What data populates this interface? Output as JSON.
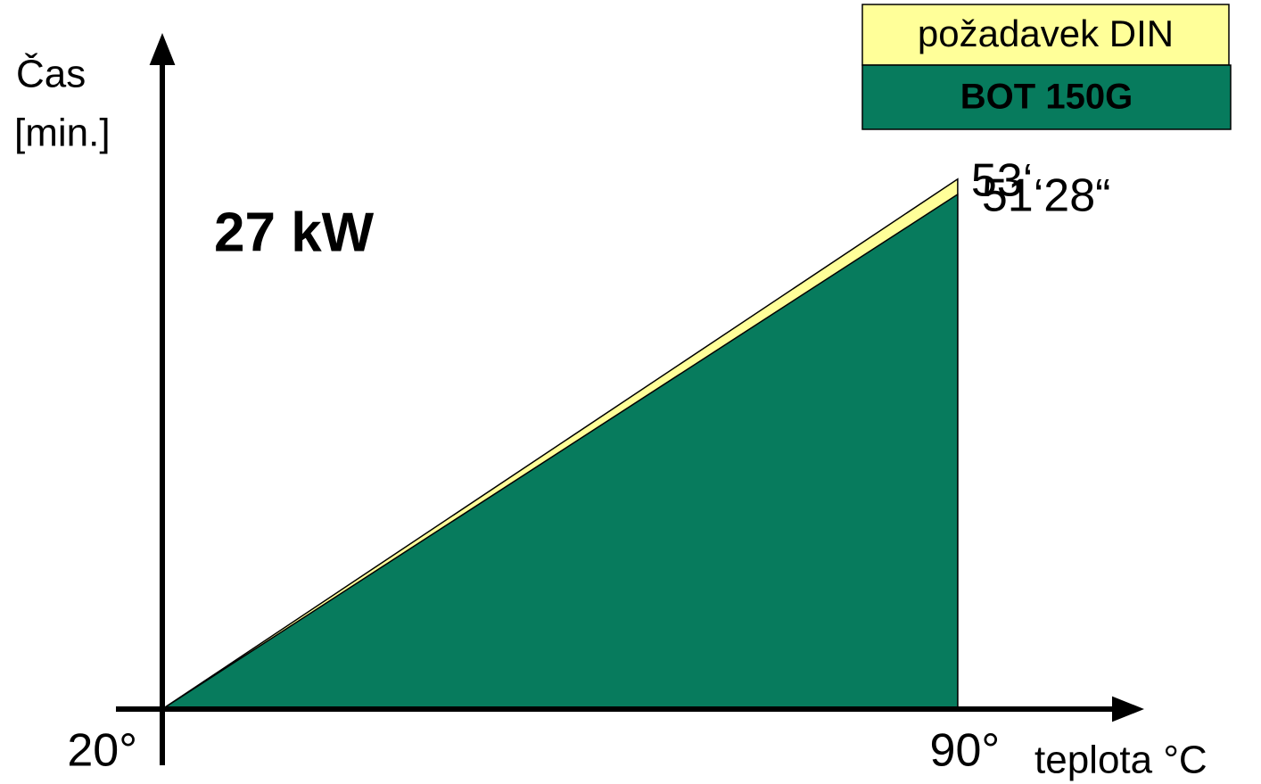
{
  "chart_data": {
    "type": "area",
    "ylabel": [
      "Čas",
      "[min.]"
    ],
    "xlabel": "teplota °C",
    "annotation": "27 kW",
    "x": [
      20,
      90
    ],
    "xlim": [
      20,
      105
    ],
    "xticks": [
      {
        "value": 20,
        "label": "20°"
      },
      {
        "value": 90,
        "label": "90°"
      }
    ],
    "ylim": [
      0,
      66
    ],
    "series": [
      {
        "name": "požadavek DIN",
        "color": "#ffff99",
        "values": [
          0,
          53
        ],
        "value_labels": [
          null,
          "53‘"
        ]
      },
      {
        "name": "BOT 150G",
        "color": "#077b5d",
        "values": [
          0,
          51.47
        ],
        "value_labels": [
          null,
          "51‘28“"
        ]
      }
    ],
    "legend": "top-right"
  }
}
